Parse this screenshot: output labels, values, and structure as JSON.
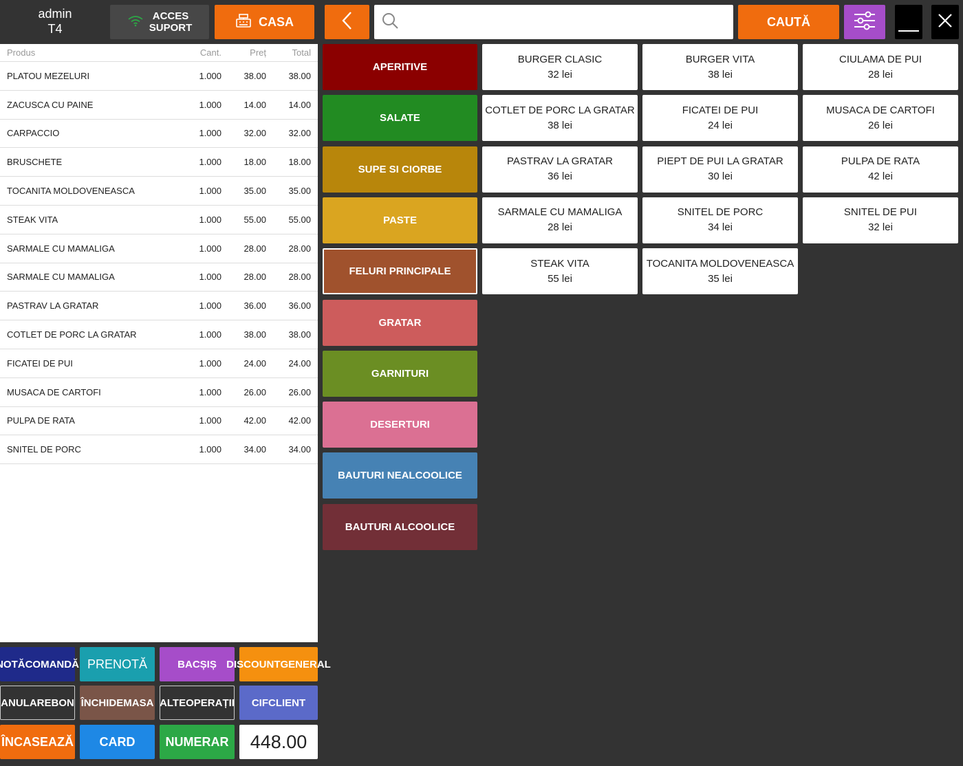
{
  "user": {
    "name": "admin",
    "table": "T4"
  },
  "toolbar": {
    "support_label_1": "ACCES",
    "support_label_2": "SUPORT",
    "casa_label": "CASA",
    "search_placeholder": "",
    "search_label": "CAUTĂ"
  },
  "order": {
    "headers": {
      "product": "Produs",
      "qty": "Cant.",
      "price": "Preț",
      "total": "Total"
    },
    "rows": [
      {
        "product": "PLATOU MEZELURI",
        "qty": "1.000",
        "price": "38.00",
        "total": "38.00"
      },
      {
        "product": "ZACUSCA CU PAINE",
        "qty": "1.000",
        "price": "14.00",
        "total": "14.00"
      },
      {
        "product": "CARPACCIO",
        "qty": "1.000",
        "price": "32.00",
        "total": "32.00"
      },
      {
        "product": "BRUSCHETE",
        "qty": "1.000",
        "price": "18.00",
        "total": "18.00"
      },
      {
        "product": "TOCANITA MOLDOVENEASCA",
        "qty": "1.000",
        "price": "35.00",
        "total": "35.00"
      },
      {
        "product": "STEAK VITA",
        "qty": "1.000",
        "price": "55.00",
        "total": "55.00"
      },
      {
        "product": "SARMALE CU MAMALIGA",
        "qty": "1.000",
        "price": "28.00",
        "total": "28.00"
      },
      {
        "product": "SARMALE CU MAMALIGA",
        "qty": "1.000",
        "price": "28.00",
        "total": "28.00"
      },
      {
        "product": "PASTRAV LA GRATAR",
        "qty": "1.000",
        "price": "36.00",
        "total": "36.00"
      },
      {
        "product": "COTLET DE PORC LA GRATAR",
        "qty": "1.000",
        "price": "38.00",
        "total": "38.00"
      },
      {
        "product": "FICATEI DE PUI",
        "qty": "1.000",
        "price": "24.00",
        "total": "24.00"
      },
      {
        "product": "MUSACA DE CARTOFI",
        "qty": "1.000",
        "price": "26.00",
        "total": "26.00"
      },
      {
        "product": "PULPA DE RATA",
        "qty": "1.000",
        "price": "42.00",
        "total": "42.00"
      },
      {
        "product": "SNITEL DE PORC",
        "qty": "1.000",
        "price": "34.00",
        "total": "34.00"
      }
    ],
    "total": "448.00"
  },
  "actions": {
    "nota_1": "NOTĂ",
    "nota_2": "COMANDĂ",
    "prenota": "PRENOTĂ",
    "bacsis": "BACȘIȘ",
    "discount_1": "DISCOUNT",
    "discount_2": "GENERAL",
    "anulare_1": "ANULARE",
    "anulare_2": "BON",
    "inchide_1": "ÎNCHIDE",
    "inchide_2": "MASA",
    "alte_1": "ALTE",
    "alte_2": "OPERAȚII",
    "cif_1": "CIF",
    "cif_2": "CLIENT",
    "incaseaza": "ÎNCASEAZĂ",
    "card": "CARD",
    "numerar": "NUMERAR"
  },
  "categories": [
    {
      "label": "APERITIVE",
      "color": "#8b0000"
    },
    {
      "label": "SALATE",
      "color": "#228b22"
    },
    {
      "label": "SUPE SI CIORBE",
      "color": "#b8860b"
    },
    {
      "label": "PASTE",
      "color": "#daa520"
    },
    {
      "label": "FELURI PRINCIPALE",
      "color": "#a0522d"
    },
    {
      "label": "GRATAR",
      "color": "#cd5c5c"
    },
    {
      "label": "GARNITURI",
      "color": "#6b8e23"
    },
    {
      "label": "DESERTURI",
      "color": "#db7093"
    },
    {
      "label": "BAUTURI NEALCOOLICE",
      "color": "#4682b4"
    },
    {
      "label": "BAUTURI ALCOOLICE",
      "color": "#722f37"
    }
  ],
  "products": [
    {
      "name": "BURGER CLASIC",
      "price": "32 lei"
    },
    {
      "name": "BURGER VITA",
      "price": "38 lei"
    },
    {
      "name": "CIULAMA DE PUI",
      "price": "28 lei"
    },
    {
      "name": "COTLET DE PORC LA GRATAR",
      "price": "38 lei"
    },
    {
      "name": "FICATEI DE PUI",
      "price": "24 lei"
    },
    {
      "name": "MUSACA DE CARTOFI",
      "price": "26 lei"
    },
    {
      "name": "PASTRAV LA GRATAR",
      "price": "36 lei"
    },
    {
      "name": "PIEPT DE PUI LA GRATAR",
      "price": "30 lei"
    },
    {
      "name": "PULPA DE RATA",
      "price": "42 lei"
    },
    {
      "name": "SARMALE CU MAMALIGA",
      "price": "28 lei"
    },
    {
      "name": "SNITEL DE PORC",
      "price": "34 lei"
    },
    {
      "name": "SNITEL DE PUI",
      "price": "32 lei"
    },
    {
      "name": "STEAK VITA",
      "price": "55 lei"
    },
    {
      "name": "TOCANITA MOLDOVENEASCA",
      "price": "35 lei"
    }
  ],
  "colors": {
    "accent": "#f06c0e",
    "filter": "#a64dc9",
    "nota": "#1f2a8a",
    "prenota": "#1a9fae",
    "bacsis": "#a64dc9",
    "discount": "#f5900f",
    "anulare": "#333333",
    "inchide": "#7a5548",
    "alte": "#333333",
    "cif": "#5b6ac9",
    "incaseaza": "#f06c0e",
    "card": "#1e88e5",
    "numerar": "#2ca846"
  }
}
